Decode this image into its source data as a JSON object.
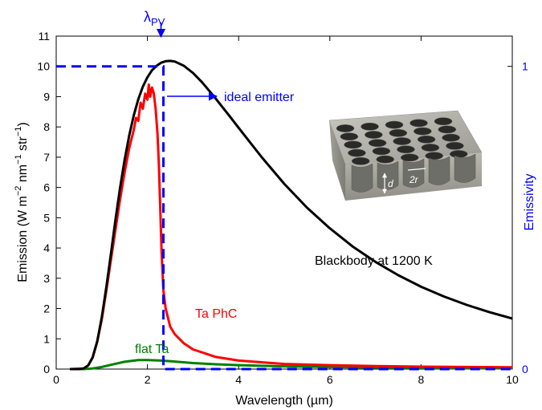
{
  "chart_data": {
    "type": "line",
    "xlabel": "Wavelength (µm)",
    "ylabel": {
      "prefix": "Emission (W m",
      "exp1": "−2",
      "mid1": " nm",
      "exp2": "−1",
      "mid2": " str",
      "exp3": "−1",
      "suffix": ")"
    },
    "y2label": "Emissivity",
    "xlim": [
      0,
      10
    ],
    "ylim": [
      0,
      11
    ],
    "y2lim": [
      0,
      1.1
    ],
    "x_ticks": [
      "0",
      "2",
      "4",
      "6",
      "8",
      "10"
    ],
    "y_ticks": [
      "0",
      "1",
      "2",
      "3",
      "4",
      "5",
      "6",
      "7",
      "8",
      "9",
      "10",
      "11"
    ],
    "y2_ticks": [
      "0",
      "1"
    ],
    "grid": false,
    "series": [
      {
        "name": "Blackbody at 1200 K",
        "color": "#000000",
        "x": [
          0.3,
          0.5,
          0.6,
          0.7,
          0.8,
          0.9,
          1.0,
          1.1,
          1.2,
          1.3,
          1.4,
          1.5,
          1.6,
          1.7,
          1.8,
          1.9,
          2.0,
          2.1,
          2.2,
          2.3,
          2.4,
          2.5,
          2.6,
          2.8,
          3.0,
          3.2,
          3.5,
          3.8,
          4.0,
          4.5,
          5.0,
          5.5,
          6.0,
          6.5,
          7.0,
          7.5,
          8.0,
          8.5,
          9.0,
          9.5,
          10.0
        ],
        "y": [
          0.0,
          0.0,
          0.02,
          0.12,
          0.39,
          0.92,
          1.72,
          2.72,
          3.82,
          4.93,
          5.98,
          6.91,
          7.71,
          8.38,
          8.91,
          9.33,
          9.64,
          9.87,
          10.02,
          10.12,
          10.17,
          10.18,
          10.16,
          10.02,
          9.78,
          9.47,
          8.93,
          8.36,
          7.97,
          7.01,
          6.12,
          5.33,
          4.65,
          4.05,
          3.54,
          3.1,
          2.72,
          2.4,
          2.12,
          1.88,
          1.67
        ]
      },
      {
        "name": "Ta PhC",
        "color": "#ff0000",
        "x": [
          0.3,
          0.6,
          0.7,
          0.8,
          0.9,
          1.0,
          1.1,
          1.2,
          1.3,
          1.4,
          1.5,
          1.6,
          1.7,
          1.75,
          1.8,
          1.85,
          1.9,
          1.95,
          2.0,
          2.03,
          2.06,
          2.1,
          2.14,
          2.18,
          2.22,
          2.25,
          2.28,
          2.31,
          2.35,
          2.4,
          2.5,
          2.6,
          2.8,
          3.0,
          3.5,
          4.0,
          5.0,
          6.0,
          7.0,
          8.0,
          9.0,
          10.0
        ],
        "y": [
          0.0,
          0.02,
          0.12,
          0.38,
          0.9,
          1.65,
          2.6,
          3.62,
          4.6,
          5.6,
          6.5,
          7.3,
          7.9,
          8.3,
          8.2,
          8.8,
          8.6,
          9.1,
          8.9,
          9.4,
          9.0,
          9.3,
          9.1,
          8.6,
          7.8,
          6.8,
          5.4,
          3.9,
          2.6,
          2.0,
          1.4,
          1.15,
          0.85,
          0.65,
          0.4,
          0.28,
          0.17,
          0.13,
          0.1,
          0.08,
          0.07,
          0.06
        ]
      },
      {
        "name": "flat Ta",
        "color": "#008000",
        "x": [
          0.3,
          0.6,
          0.8,
          1.0,
          1.2,
          1.5,
          1.8,
          2.0,
          2.3,
          2.6,
          3.0,
          3.5,
          4.0,
          5.0,
          6.0,
          7.0,
          8.0,
          9.0,
          10.0
        ],
        "y": [
          0.0,
          0.0,
          0.02,
          0.07,
          0.14,
          0.24,
          0.3,
          0.3,
          0.28,
          0.25,
          0.2,
          0.16,
          0.13,
          0.09,
          0.07,
          0.05,
          0.04,
          0.03,
          0.03
        ]
      }
    ],
    "ideal_emitter": {
      "name": "ideal emitter",
      "color": "#0000ff",
      "x": [
        0,
        2.35,
        2.35,
        10
      ],
      "y_emissivity": [
        1,
        1,
        0,
        0
      ]
    },
    "annotations": {
      "lambda_symbol": "λ",
      "lambda_sub": "PV",
      "ideal_emitter": "ideal emitter",
      "blackbody": "Blackbody at 1200 K",
      "ta_phc": "Ta PhC",
      "flat_ta": "flat Ta"
    },
    "inset": {
      "label_d": "d",
      "label_2r": "2r",
      "label_a": "a"
    },
    "colors": {
      "blackbody": "#000000",
      "ta_phc": "#ff0000",
      "flat_ta": "#008000",
      "ideal": "#0000ff",
      "right_axis": "#0000ee"
    }
  }
}
